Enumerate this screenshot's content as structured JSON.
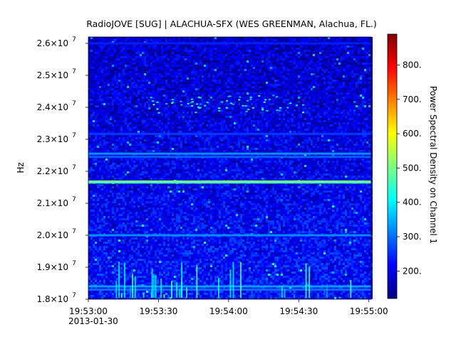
{
  "chart_data": {
    "type": "heatmap",
    "title": "RadioJOVE [SUG] | ALACHUA-SFX (WES GREENMAN, Alachua, FL.)",
    "ylabel": "Hz",
    "date_label": "2013-01-30",
    "x_tick_labels": [
      "19:53:00",
      "19:53:30",
      "19:54:00",
      "19:54:30",
      "19:55:00"
    ],
    "x_ticks_seconds": [
      0,
      30,
      60,
      90,
      120
    ],
    "xlim_seconds": [
      0,
      121
    ],
    "ylim": [
      18000000,
      26200000
    ],
    "y_ticks": [
      {
        "value": 18000000,
        "mantissa": "1.8",
        "exp": "7"
      },
      {
        "value": 19000000,
        "mantissa": "1.9",
        "exp": "7"
      },
      {
        "value": 20000000,
        "mantissa": "2.0",
        "exp": "7"
      },
      {
        "value": 21000000,
        "mantissa": "2.1",
        "exp": "7"
      },
      {
        "value": 22000000,
        "mantissa": "2.2",
        "exp": "7"
      },
      {
        "value": 23000000,
        "mantissa": "2.3",
        "exp": "7"
      },
      {
        "value": 24000000,
        "mantissa": "2.4",
        "exp": "7"
      },
      {
        "value": 25000000,
        "mantissa": "2.5",
        "exp": "7"
      },
      {
        "value": 26000000,
        "mantissa": "2.6",
        "exp": "7"
      }
    ],
    "y_tick_times": "×10",
    "colorbar": {
      "label": "Power Spectral Density on Channel 1",
      "range": [
        120,
        890
      ],
      "tick_labels": [
        "200.",
        "300.",
        "400.",
        "500.",
        "600.",
        "700.",
        "800."
      ],
      "tick_values": [
        200,
        300,
        400,
        500,
        600,
        700,
        800
      ],
      "colormap": [
        "#00007f",
        "#0000ff",
        "#007fff",
        "#00ffff",
        "#7fff7f",
        "#ffff00",
        "#ff7f00",
        "#ff0000",
        "#7f0000"
      ]
    },
    "horizontal_bands": [
      {
        "freq": 21680000,
        "level": 520
      },
      {
        "freq": 21650000,
        "level": 470
      },
      {
        "freq": 22550000,
        "level": 330
      },
      {
        "freq": 22450000,
        "level": 290
      },
      {
        "freq": 20000000,
        "level": 330
      },
      {
        "freq": 23170000,
        "level": 260
      },
      {
        "freq": 18400000,
        "level": 340
      },
      {
        "freq": 18300000,
        "level": 300
      },
      {
        "freq": 26000000,
        "level": 240
      }
    ],
    "burst_freq_range": [
      23850000,
      24400000
    ]
  }
}
